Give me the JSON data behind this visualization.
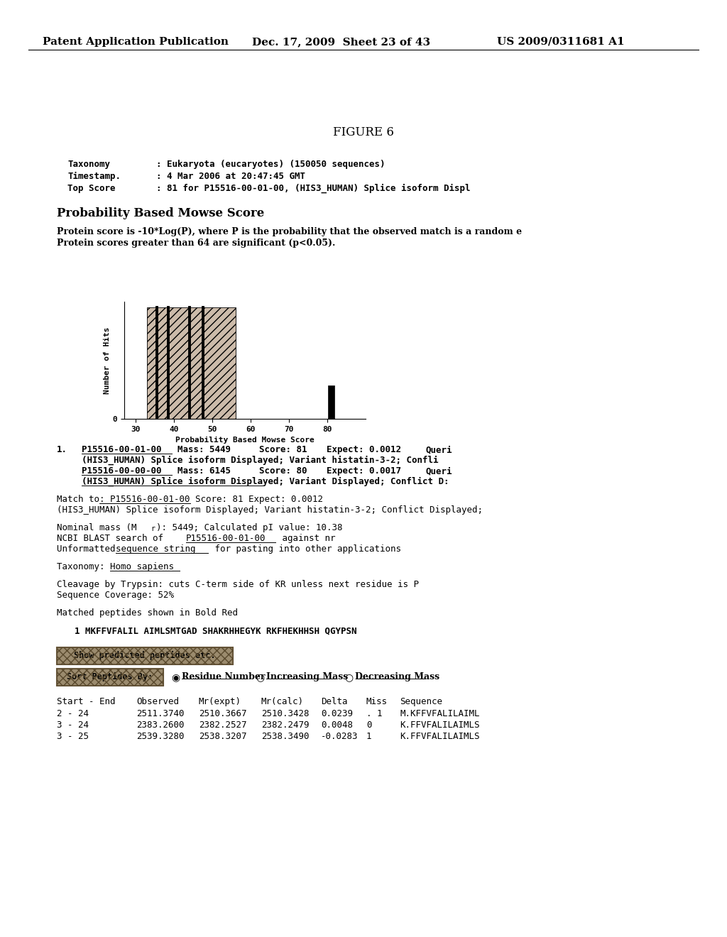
{
  "header_left": "Patent Application Publication",
  "header_mid": "Dec. 17, 2009  Sheet 23 of 43",
  "header_right": "US 2009/0311681 A1",
  "figure_title": "FIGURE 6",
  "meta_labels": [
    "Taxonomy",
    "Timestamp.",
    "Top Score"
  ],
  "meta_values": [
    ": Eukaryota (eucaryotes) (150050 sequences)",
    ": 4 Mar 2006 at 20:47:45 GMT",
    ": 81 for P15516-00-01-00, (HIS3_HUMAN) Splice isoform Displ"
  ],
  "section_title": "Probability Based Mowse Score",
  "desc1": "Protein score is -10*Log(P), where P is the probability that the observed match is a random e",
  "desc2": "Protein scores greater than 64 are significant (p<0.05).",
  "chart_xlabel": "Probability Based Mowse Score",
  "chart_ylabel": "Number of Hits",
  "button1_text": "Show predicted peptides etc.",
  "button2_text": "Sort Peptides By:",
  "radio_labels": [
    "Residue Number",
    "Increasing Mass",
    "Decreasing Mass"
  ],
  "table_headers": [
    "Start - End",
    "Observed",
    "Mr(expt)",
    "Mr(calc)",
    "Delta",
    "Miss",
    "Sequence"
  ],
  "table_rows": [
    [
      "2 - 24",
      "2511.3740",
      "2510.3667",
      "2510.3428",
      "0.0239",
      ". 1",
      "M.KFFVFALILAIML"
    ],
    [
      "3 - 24",
      "2383.2600",
      "2382.2527",
      "2382.2479",
      "0.0048",
      "0",
      "K.FFVFALILAIMLS"
    ],
    [
      "3 - 25",
      "2539.3280",
      "2538.3207",
      "2538.3490",
      "-0.0283",
      "1",
      "K.FFVFALILAIMLS"
    ]
  ],
  "bg_color": "#ffffff"
}
